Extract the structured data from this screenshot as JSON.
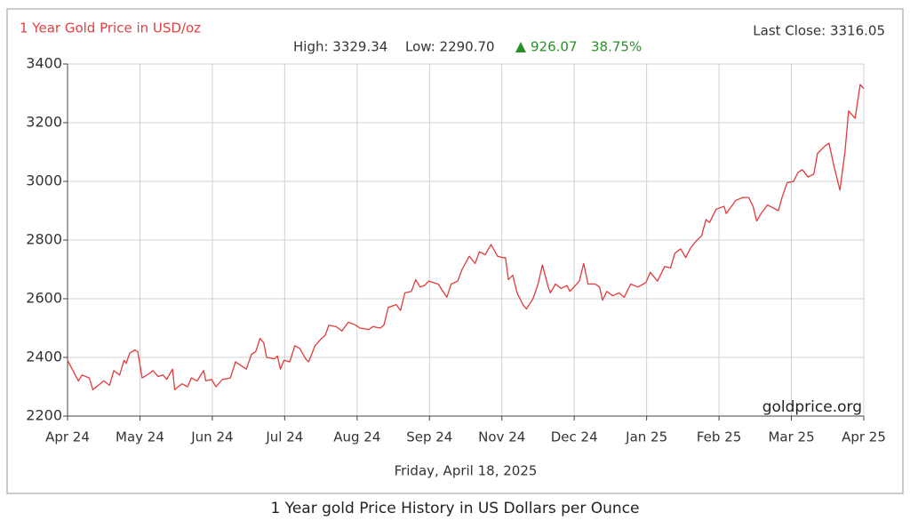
{
  "chart_data": {
    "type": "line",
    "title": "1 Year Gold Price in USD/oz",
    "last_close": "Last Close: 3316.05",
    "high": "High: 3329.34",
    "low": "Low: 2290.70",
    "change": "926.07",
    "change_percent": "38.75%",
    "watermark": "goldprice.org",
    "date": "Friday, April 18, 2025",
    "caption": "1 Year gold Price History in US Dollars per Ounce",
    "color": "#e23b3b",
    "grid": true,
    "xlim": [
      0,
      11
    ],
    "xticks": [
      {
        "value": 0,
        "label": "Apr 24"
      },
      {
        "value": 1,
        "label": "May 24"
      },
      {
        "value": 2,
        "label": "Jun 24"
      },
      {
        "value": 3,
        "label": "Jul 24"
      },
      {
        "value": 4,
        "label": "Aug 24"
      },
      {
        "value": 5,
        "label": "Sep 24"
      },
      {
        "value": 6,
        "label": "Nov 24"
      },
      {
        "value": 7,
        "label": "Dec 24"
      },
      {
        "value": 8,
        "label": "Jan 25"
      },
      {
        "value": 9,
        "label": "Feb 25"
      },
      {
        "value": 10,
        "label": "Mar 25"
      },
      {
        "value": 11,
        "label": "Apr 25"
      }
    ],
    "ylim": [
      2200,
      3400
    ],
    "yticks": [
      2200,
      2400,
      2600,
      2800,
      3000,
      3200,
      3400
    ],
    "x": [
      0,
      0.15,
      0.2,
      0.3,
      0.35,
      0.45,
      0.5,
      0.58,
      0.64,
      0.72,
      0.78,
      0.81,
      0.86,
      0.93,
      0.97,
      1.03,
      1.13,
      1.18,
      1.25,
      1.32,
      1.37,
      1.45,
      1.48,
      1.58,
      1.66,
      1.71,
      1.79,
      1.88,
      1.91,
      1.99,
      2.05,
      2.14,
      2.25,
      2.32,
      2.41,
      2.47,
      2.54,
      2.6,
      2.66,
      2.71,
      2.75,
      2.86,
      2.9,
      2.94,
      2.99,
      3.07,
      3.14,
      3.21,
      3.29,
      3.33,
      3.42,
      3.51,
      3.56,
      3.61,
      3.71,
      3.79,
      3.88,
      3.98,
      4.04,
      4.16,
      4.22,
      4.32,
      4.37,
      4.43,
      4.54,
      4.6,
      4.66,
      4.75,
      4.81,
      4.87,
      4.93,
      4.99,
      5.12,
      5.24,
      5.3,
      5.39,
      5.45,
      5.55,
      5.63,
      5.69,
      5.77,
      5.85,
      5.94,
      6.01,
      6.05,
      6.09,
      6.15,
      6.21,
      6.29,
      6.34,
      6.43,
      6.5,
      6.56,
      6.64,
      6.67,
      6.74,
      6.82,
      6.9,
      6.94,
      7.07,
      7.13,
      7.19,
      7.29,
      7.35,
      7.39,
      7.45,
      7.53,
      7.62,
      7.69,
      7.78,
      7.88,
      7.99,
      8.05,
      8.15,
      8.25,
      8.33,
      8.39,
      8.47,
      8.54,
      8.6,
      8.66,
      8.76,
      8.82,
      8.87,
      8.96,
      9.07,
      9.1,
      9.23,
      9.33,
      9.41,
      9.47,
      9.52,
      9.58,
      9.67,
      9.82,
      9.87,
      9.94,
      10.03,
      10.09,
      10.15,
      10.23,
      10.31,
      10.36,
      10.46,
      10.52,
      10.59,
      10.64,
      10.67,
      10.74,
      10.79,
      10.88,
      10.95,
      11
    ],
    "values": [
      2390,
      2320,
      2340,
      2330,
      2290,
      2310,
      2320,
      2305,
      2355,
      2340,
      2390,
      2380,
      2415,
      2425,
      2420,
      2330,
      2345,
      2355,
      2335,
      2340,
      2325,
      2360,
      2290,
      2310,
      2300,
      2330,
      2320,
      2355,
      2320,
      2325,
      2300,
      2325,
      2330,
      2385,
      2370,
      2360,
      2410,
      2420,
      2465,
      2450,
      2400,
      2395,
      2405,
      2360,
      2390,
      2385,
      2440,
      2430,
      2395,
      2385,
      2440,
      2465,
      2475,
      2510,
      2505,
      2490,
      2520,
      2510,
      2500,
      2495,
      2505,
      2500,
      2510,
      2570,
      2580,
      2560,
      2620,
      2625,
      2665,
      2640,
      2645,
      2660,
      2650,
      2605,
      2650,
      2660,
      2700,
      2745,
      2720,
      2760,
      2750,
      2785,
      2745,
      2740,
      2740,
      2665,
      2680,
      2620,
      2580,
      2565,
      2600,
      2650,
      2715,
      2640,
      2620,
      2650,
      2635,
      2645,
      2625,
      2660,
      2720,
      2650,
      2650,
      2640,
      2595,
      2625,
      2610,
      2620,
      2605,
      2650,
      2640,
      2655,
      2690,
      2660,
      2710,
      2705,
      2755,
      2770,
      2740,
      2770,
      2790,
      2815,
      2870,
      2860,
      2905,
      2915,
      2890,
      2935,
      2945,
      2945,
      2915,
      2865,
      2890,
      2920,
      2900,
      2945,
      2995,
      3000,
      3030,
      3040,
      3015,
      3025,
      3095,
      3120,
      3130,
      3050,
      3000,
      2970,
      3100,
      3240,
      3215,
      3330,
      3316
    ]
  }
}
